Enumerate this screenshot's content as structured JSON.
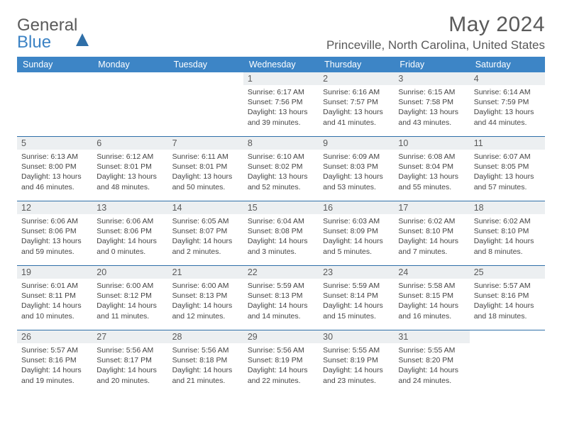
{
  "logo": {
    "general": "General",
    "blue": "Blue"
  },
  "title": "May 2024",
  "location": "Princeville, North Carolina, United States",
  "dayNames": [
    "Sunday",
    "Monday",
    "Tuesday",
    "Wednesday",
    "Thursday",
    "Friday",
    "Saturday"
  ],
  "colors": {
    "headerBg": "#3d85c6",
    "headerText": "#ffffff",
    "dayNumBg": "#eceff1",
    "borderColor": "#2f6fa8",
    "textColor": "#5a5a5a",
    "logoBlue": "#3b82c4"
  },
  "weeks": [
    [
      null,
      null,
      null,
      {
        "n": "1",
        "sr": "6:17 AM",
        "ss": "7:56 PM",
        "dl": "13 hours and 39 minutes."
      },
      {
        "n": "2",
        "sr": "6:16 AM",
        "ss": "7:57 PM",
        "dl": "13 hours and 41 minutes."
      },
      {
        "n": "3",
        "sr": "6:15 AM",
        "ss": "7:58 PM",
        "dl": "13 hours and 43 minutes."
      },
      {
        "n": "4",
        "sr": "6:14 AM",
        "ss": "7:59 PM",
        "dl": "13 hours and 44 minutes."
      }
    ],
    [
      {
        "n": "5",
        "sr": "6:13 AM",
        "ss": "8:00 PM",
        "dl": "13 hours and 46 minutes."
      },
      {
        "n": "6",
        "sr": "6:12 AM",
        "ss": "8:01 PM",
        "dl": "13 hours and 48 minutes."
      },
      {
        "n": "7",
        "sr": "6:11 AM",
        "ss": "8:01 PM",
        "dl": "13 hours and 50 minutes."
      },
      {
        "n": "8",
        "sr": "6:10 AM",
        "ss": "8:02 PM",
        "dl": "13 hours and 52 minutes."
      },
      {
        "n": "9",
        "sr": "6:09 AM",
        "ss": "8:03 PM",
        "dl": "13 hours and 53 minutes."
      },
      {
        "n": "10",
        "sr": "6:08 AM",
        "ss": "8:04 PM",
        "dl": "13 hours and 55 minutes."
      },
      {
        "n": "11",
        "sr": "6:07 AM",
        "ss": "8:05 PM",
        "dl": "13 hours and 57 minutes."
      }
    ],
    [
      {
        "n": "12",
        "sr": "6:06 AM",
        "ss": "8:06 PM",
        "dl": "13 hours and 59 minutes."
      },
      {
        "n": "13",
        "sr": "6:06 AM",
        "ss": "8:06 PM",
        "dl": "14 hours and 0 minutes."
      },
      {
        "n": "14",
        "sr": "6:05 AM",
        "ss": "8:07 PM",
        "dl": "14 hours and 2 minutes."
      },
      {
        "n": "15",
        "sr": "6:04 AM",
        "ss": "8:08 PM",
        "dl": "14 hours and 3 minutes."
      },
      {
        "n": "16",
        "sr": "6:03 AM",
        "ss": "8:09 PM",
        "dl": "14 hours and 5 minutes."
      },
      {
        "n": "17",
        "sr": "6:02 AM",
        "ss": "8:10 PM",
        "dl": "14 hours and 7 minutes."
      },
      {
        "n": "18",
        "sr": "6:02 AM",
        "ss": "8:10 PM",
        "dl": "14 hours and 8 minutes."
      }
    ],
    [
      {
        "n": "19",
        "sr": "6:01 AM",
        "ss": "8:11 PM",
        "dl": "14 hours and 10 minutes."
      },
      {
        "n": "20",
        "sr": "6:00 AM",
        "ss": "8:12 PM",
        "dl": "14 hours and 11 minutes."
      },
      {
        "n": "21",
        "sr": "6:00 AM",
        "ss": "8:13 PM",
        "dl": "14 hours and 12 minutes."
      },
      {
        "n": "22",
        "sr": "5:59 AM",
        "ss": "8:13 PM",
        "dl": "14 hours and 14 minutes."
      },
      {
        "n": "23",
        "sr": "5:59 AM",
        "ss": "8:14 PM",
        "dl": "14 hours and 15 minutes."
      },
      {
        "n": "24",
        "sr": "5:58 AM",
        "ss": "8:15 PM",
        "dl": "14 hours and 16 minutes."
      },
      {
        "n": "25",
        "sr": "5:57 AM",
        "ss": "8:16 PM",
        "dl": "14 hours and 18 minutes."
      }
    ],
    [
      {
        "n": "26",
        "sr": "5:57 AM",
        "ss": "8:16 PM",
        "dl": "14 hours and 19 minutes."
      },
      {
        "n": "27",
        "sr": "5:56 AM",
        "ss": "8:17 PM",
        "dl": "14 hours and 20 minutes."
      },
      {
        "n": "28",
        "sr": "5:56 AM",
        "ss": "8:18 PM",
        "dl": "14 hours and 21 minutes."
      },
      {
        "n": "29",
        "sr": "5:56 AM",
        "ss": "8:19 PM",
        "dl": "14 hours and 22 minutes."
      },
      {
        "n": "30",
        "sr": "5:55 AM",
        "ss": "8:19 PM",
        "dl": "14 hours and 23 minutes."
      },
      {
        "n": "31",
        "sr": "5:55 AM",
        "ss": "8:20 PM",
        "dl": "14 hours and 24 minutes."
      },
      null
    ]
  ],
  "labels": {
    "sunrise": "Sunrise: ",
    "sunset": "Sunset: ",
    "daylight": "Daylight: "
  }
}
